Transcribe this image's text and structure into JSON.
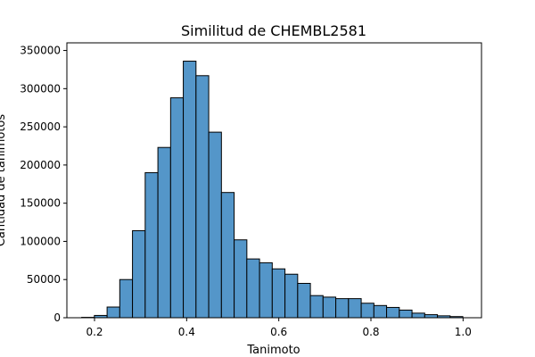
{
  "chart_data": {
    "type": "bar",
    "title": "Similitud de CHEMBL2581",
    "xlabel": "Tanimoto",
    "ylabel": "Cantidad de tanimotos",
    "xlim": [
      0.14,
      1.04
    ],
    "ylim": [
      0,
      360000
    ],
    "grid": false,
    "bar_color": "#5496c9",
    "x_ticks": [
      0.2,
      0.4,
      0.6,
      0.8,
      1.0
    ],
    "x_tick_labels": [
      "0.2",
      "0.4",
      "0.6",
      "0.8",
      "1.0"
    ],
    "y_ticks": [
      0,
      50000,
      100000,
      150000,
      200000,
      250000,
      300000,
      350000
    ],
    "y_tick_labels": [
      "0",
      "50000",
      "100000",
      "150000",
      "200000",
      "250000",
      "300000",
      "350000"
    ],
    "bin_width": 0.02758,
    "bin_starts": [
      0.1721,
      0.1997,
      0.2273,
      0.2548,
      0.2824,
      0.31,
      0.3376,
      0.3652,
      0.3927,
      0.4203,
      0.4479,
      0.4755,
      0.5031,
      0.5306,
      0.5582,
      0.5858,
      0.6134,
      0.641,
      0.6685,
      0.6961,
      0.7237,
      0.7513,
      0.7789,
      0.8064,
      0.834,
      0.8616,
      0.8892,
      0.9168,
      0.9443,
      0.9719
    ],
    "values": [
      500,
      3000,
      14000,
      50000,
      114000,
      190000,
      223000,
      288000,
      336000,
      317000,
      243000,
      164000,
      102000,
      77000,
      72000,
      64000,
      57000,
      45000,
      29000,
      27000,
      25000,
      25000,
      19000,
      16000,
      13500,
      10000,
      6000,
      4000,
      2500,
      1500
    ]
  }
}
